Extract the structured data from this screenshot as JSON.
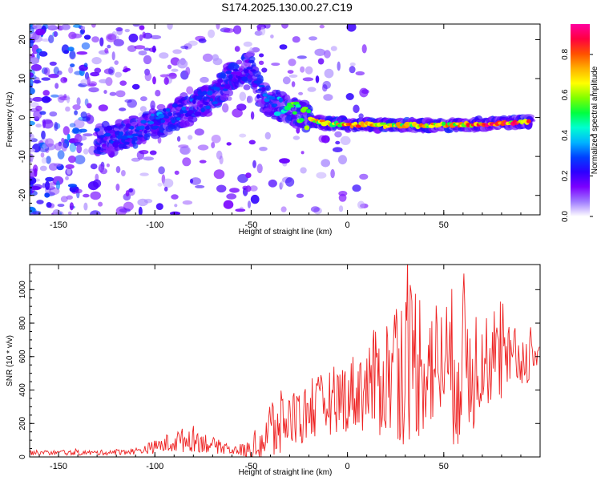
{
  "title": "S174.2025.130.00.27.C19",
  "chart_data": [
    {
      "type": "heatmap",
      "xlabel": "Height of straight line (km)",
      "ylabel": "Frequency (Hz)",
      "xlim": [
        -165,
        100
      ],
      "ylim": [
        -25,
        24
      ],
      "x_ticks": [
        -150,
        -100,
        -50,
        0,
        50
      ],
      "y_ticks": [
        -20,
        -10,
        0,
        10,
        20
      ],
      "colorbar": {
        "label": "Normalized spectral amplitude",
        "range": [
          0,
          0.95
        ],
        "ticks": [
          "0.0",
          "0.2",
          "0.4",
          "0.6",
          "0.8"
        ],
        "colors": [
          "#ffffff",
          "#9f7bff",
          "#7b00ff",
          "#2d00ff",
          "#0040ff",
          "#00b4ff",
          "#00ffd0",
          "#00ff40",
          "#7fff00",
          "#ffff00",
          "#ffb000",
          "#ff5000",
          "#ff0040",
          "#ff00a0"
        ]
      },
      "ridge_x": [
        -130,
        -120,
        -110,
        -100,
        -90,
        -80,
        -70,
        -60,
        -50,
        -45,
        -40,
        -35,
        -30,
        -25,
        -20,
        -10,
        0,
        10,
        20,
        30,
        40,
        50,
        60,
        70,
        80,
        90,
        95
      ],
      "ridge_y": [
        -5.5,
        -5.0,
        -4.0,
        -1.5,
        0.5,
        2.5,
        5.0,
        11.0,
        13.0,
        6.0,
        4.0,
        3.0,
        2.0,
        1.0,
        -0.5,
        -1.5,
        -2.0,
        -1.8,
        -2.0,
        -2.0,
        -2.0,
        -2.0,
        -1.8,
        -1.8,
        -1.5,
        -1.0,
        -1.0
      ],
      "ridge_amplitude": [
        0.25,
        0.3,
        0.3,
        0.35,
        0.35,
        0.3,
        0.3,
        0.25,
        0.25,
        0.3,
        0.35,
        0.45,
        0.6,
        0.7,
        0.75,
        0.8,
        0.85,
        0.8,
        0.8,
        0.75,
        0.8,
        0.75,
        0.85,
        0.9,
        0.9,
        0.9,
        0.95
      ]
    },
    {
      "type": "line",
      "xlabel": "Height of straight line (km)",
      "ylabel": "SNR (10 * v/v)",
      "xlim": [
        -165,
        100
      ],
      "ylim": [
        0,
        1150
      ],
      "x_ticks": [
        -150,
        -100,
        -50,
        0,
        50
      ],
      "y_ticks": [
        0,
        200,
        400,
        600,
        800,
        1000
      ],
      "color": "#ee2222",
      "envelope_x": [
        -165,
        -130,
        -110,
        -100,
        -90,
        -80,
        -70,
        -60,
        -50,
        -45,
        -40,
        -30,
        -20,
        -10,
        0,
        10,
        20,
        25,
        30,
        35,
        40,
        50,
        55,
        60,
        65,
        70,
        80,
        90,
        100
      ],
      "envelope_mid": [
        25,
        25,
        35,
        60,
        90,
        110,
        70,
        40,
        40,
        80,
        150,
        230,
        260,
        330,
        370,
        420,
        480,
        530,
        560,
        600,
        560,
        560,
        540,
        600,
        560,
        560,
        560,
        580,
        620
      ],
      "envelope_amp": [
        15,
        15,
        20,
        40,
        70,
        80,
        50,
        25,
        60,
        170,
        230,
        180,
        180,
        200,
        220,
        280,
        380,
        450,
        500,
        520,
        420,
        380,
        500,
        520,
        450,
        260,
        250,
        180,
        120
      ]
    }
  ]
}
